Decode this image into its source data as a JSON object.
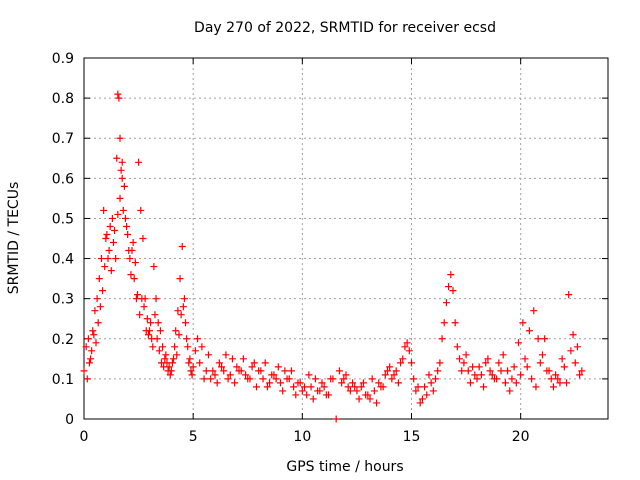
{
  "chart_data": {
    "type": "scatter",
    "title": "Day 270 of 2022, SRMTID for receiver ecsd",
    "xlabel": "GPS time / hours",
    "ylabel": "SRMTID / TECUs",
    "xlim": [
      0,
      24
    ],
    "ylim": [
      0,
      0.9
    ],
    "xticks": [
      0,
      5,
      10,
      15,
      20
    ],
    "yticks": [
      0,
      0.1,
      0.2,
      0.3,
      0.4,
      0.5,
      0.6,
      0.7,
      0.8,
      0.9
    ],
    "grid": true,
    "marker": "+",
    "color": "#ff0000",
    "series": [
      {
        "name": "SRMTID",
        "x": [
          0.0,
          0.1,
          0.2,
          0.3,
          0.4,
          0.5,
          0.6,
          0.7,
          0.8,
          0.9,
          1.0,
          1.1,
          1.2,
          1.3,
          1.4,
          1.5,
          1.55,
          1.6,
          1.65,
          1.7,
          1.75,
          1.8,
          1.9,
          2.0,
          2.1,
          2.2,
          2.3,
          2.4,
          2.5,
          2.6,
          2.7,
          2.8,
          2.9,
          3.0,
          3.1,
          3.2,
          3.3,
          3.4,
          3.5,
          3.6,
          3.7,
          3.8,
          3.9,
          4.0,
          4.1,
          4.2,
          4.3,
          4.4,
          4.5,
          4.6,
          4.7,
          4.8,
          4.9,
          5.0,
          5.2,
          5.4,
          5.6,
          5.8,
          6.0,
          6.2,
          6.4,
          6.6,
          6.8,
          7.0,
          7.2,
          7.4,
          7.6,
          7.8,
          8.0,
          8.2,
          8.4,
          8.6,
          8.8,
          9.0,
          9.2,
          9.4,
          9.6,
          9.8,
          10.0,
          10.2,
          10.4,
          10.6,
          10.8,
          11.0,
          11.2,
          11.4,
          11.55,
          11.7,
          11.9,
          12.1,
          12.3,
          12.5,
          12.7,
          12.9,
          13.1,
          13.3,
          13.5,
          13.7,
          13.9,
          14.1,
          14.3,
          14.5,
          14.7,
          14.9,
          15.1,
          15.3,
          15.5,
          15.7,
          15.9,
          16.1,
          16.3,
          16.5,
          16.7,
          16.8,
          16.9,
          17.0,
          17.2,
          17.4,
          17.6,
          17.8,
          18.0,
          18.2,
          18.4,
          18.6,
          18.8,
          19.0,
          19.2,
          19.4,
          19.6,
          19.8,
          20.0,
          20.2,
          20.4,
          20.6,
          20.8,
          21.0,
          21.2,
          21.4,
          21.6,
          21.8,
          22.0,
          22.2,
          22.4,
          22.6,
          22.8,
          0.15,
          0.25,
          0.35,
          0.45,
          0.55,
          0.65,
          0.75,
          0.85,
          0.95,
          1.05,
          1.15,
          1.25,
          1.35,
          1.45,
          1.55,
          1.65,
          1.75,
          1.85,
          1.95,
          2.05,
          2.15,
          2.25,
          2.35,
          2.45,
          2.55,
          2.65,
          2.75,
          2.85,
          2.95,
          3.05,
          3.15,
          3.25,
          3.35,
          3.45,
          3.55,
          3.65,
          3.75,
          3.85,
          3.95,
          4.05,
          4.15,
          4.25,
          4.35,
          4.45,
          4.55,
          4.65,
          4.75,
          4.85,
          4.95,
          5.1,
          5.3,
          5.5,
          5.7,
          5.9,
          6.1,
          6.3,
          6.5,
          6.7,
          6.9,
          7.1,
          7.3,
          7.5,
          7.7,
          7.9,
          8.1,
          8.3,
          8.5,
          8.7,
          8.9,
          9.1,
          9.3,
          9.5,
          9.7,
          9.9,
          10.1,
          10.3,
          10.5,
          10.7,
          10.9,
          11.1,
          11.3,
          11.8,
          12.0,
          12.2,
          12.4,
          12.6,
          12.8,
          13.0,
          13.2,
          13.4,
          13.6,
          13.8,
          14.0,
          14.2,
          14.4,
          14.6,
          14.8,
          15.0,
          15.2,
          15.4,
          15.6,
          15.8,
          16.0,
          16.2,
          16.4,
          16.6,
          17.1,
          17.3,
          17.5,
          17.7,
          17.9,
          18.1,
          18.3,
          18.5,
          18.7,
          18.9,
          19.1,
          19.3,
          19.5,
          19.7,
          19.9,
          20.1,
          20.3,
          20.5,
          20.7,
          20.9,
          21.1,
          21.3,
          21.5,
          21.7,
          21.9,
          22.1,
          22.3,
          22.5,
          22.7
        ],
        "y": [
          0.12,
          0.18,
          0.2,
          0.15,
          0.22,
          0.27,
          0.3,
          0.35,
          0.4,
          0.52,
          0.45,
          0.4,
          0.48,
          0.5,
          0.47,
          0.65,
          0.81,
          0.8,
          0.7,
          0.62,
          0.64,
          0.52,
          0.5,
          0.46,
          0.4,
          0.42,
          0.35,
          0.3,
          0.64,
          0.52,
          0.45,
          0.3,
          0.25,
          0.22,
          0.2,
          0.38,
          0.3,
          0.24,
          0.22,
          0.18,
          0.15,
          0.14,
          0.13,
          0.12,
          0.15,
          0.22,
          0.27,
          0.35,
          0.43,
          0.3,
          0.2,
          0.14,
          0.12,
          0.13,
          0.2,
          0.18,
          0.12,
          0.1,
          0.11,
          0.14,
          0.12,
          0.1,
          0.15,
          0.13,
          0.12,
          0.11,
          0.1,
          0.14,
          0.12,
          0.1,
          0.08,
          0.11,
          0.1,
          0.09,
          0.12,
          0.1,
          0.08,
          0.09,
          0.07,
          0.06,
          0.08,
          0.1,
          0.07,
          0.08,
          0.06,
          0.1,
          0.0,
          0.12,
          0.1,
          0.08,
          0.09,
          0.07,
          0.08,
          0.06,
          0.05,
          0.07,
          0.09,
          0.08,
          0.12,
          0.1,
          0.12,
          0.14,
          0.18,
          0.17,
          0.1,
          0.08,
          0.05,
          0.06,
          0.09,
          0.1,
          0.14,
          0.24,
          0.33,
          0.36,
          0.32,
          0.24,
          0.15,
          0.14,
          0.12,
          0.13,
          0.1,
          0.11,
          0.14,
          0.12,
          0.1,
          0.14,
          0.16,
          0.12,
          0.1,
          0.09,
          0.11,
          0.15,
          0.22,
          0.27,
          0.2,
          0.16,
          0.12,
          0.1,
          0.11,
          0.09,
          0.13,
          0.31,
          0.21,
          0.18,
          0.12,
          0.1,
          0.14,
          0.17,
          0.21,
          0.19,
          0.24,
          0.28,
          0.32,
          0.38,
          0.46,
          0.42,
          0.37,
          0.44,
          0.4,
          0.51,
          0.55,
          0.6,
          0.58,
          0.48,
          0.42,
          0.36,
          0.44,
          0.39,
          0.31,
          0.26,
          0.3,
          0.28,
          0.22,
          0.21,
          0.24,
          0.18,
          0.26,
          0.2,
          0.17,
          0.14,
          0.13,
          0.16,
          0.12,
          0.11,
          0.14,
          0.18,
          0.16,
          0.21,
          0.26,
          0.28,
          0.24,
          0.18,
          0.15,
          0.11,
          0.17,
          0.14,
          0.1,
          0.16,
          0.12,
          0.09,
          0.13,
          0.16,
          0.11,
          0.09,
          0.12,
          0.15,
          0.1,
          0.13,
          0.08,
          0.12,
          0.14,
          0.09,
          0.11,
          0.13,
          0.07,
          0.1,
          0.12,
          0.06,
          0.09,
          0.08,
          0.11,
          0.05,
          0.07,
          0.09,
          0.06,
          0.1,
          0.09,
          0.11,
          0.07,
          0.08,
          0.05,
          0.09,
          0.06,
          0.1,
          0.04,
          0.08,
          0.11,
          0.13,
          0.11,
          0.09,
          0.15,
          0.19,
          0.14,
          0.07,
          0.04,
          0.08,
          0.11,
          0.07,
          0.12,
          0.2,
          0.29,
          0.18,
          0.12,
          0.16,
          0.09,
          0.11,
          0.13,
          0.08,
          0.15,
          0.11,
          0.1,
          0.12,
          0.09,
          0.07,
          0.13,
          0.19,
          0.24,
          0.13,
          0.1,
          0.08,
          0.14,
          0.2,
          0.12,
          0.08,
          0.1,
          0.15,
          0.09,
          0.17,
          0.14,
          0.11
        ]
      }
    ]
  }
}
